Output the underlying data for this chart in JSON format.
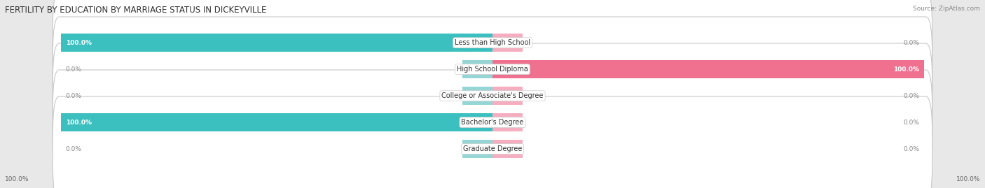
{
  "title": "FERTILITY BY EDUCATION BY MARRIAGE STATUS IN DICKEYVILLE",
  "source": "Source: ZipAtlas.com",
  "categories": [
    "Less than High School",
    "High School Diploma",
    "College or Associate's Degree",
    "Bachelor's Degree",
    "Graduate Degree"
  ],
  "married_values": [
    100.0,
    0.0,
    0.0,
    100.0,
    0.0
  ],
  "unmarried_values": [
    0.0,
    100.0,
    0.0,
    0.0,
    0.0
  ],
  "married_color": "#3bbfbf",
  "unmarried_color": "#f07090",
  "married_color_light": "#96d5d5",
  "unmarried_color_light": "#f5aec0",
  "background_color": "#e8e8e8",
  "row_bg_color": "#f5f5f5",
  "title_fontsize": 8.5,
  "label_fontsize": 7.0,
  "value_fontsize": 6.5,
  "legend_fontsize": 7.5
}
